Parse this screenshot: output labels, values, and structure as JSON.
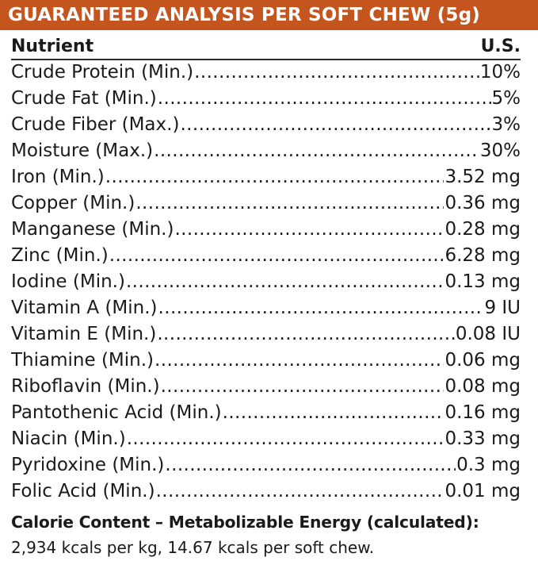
{
  "header": {
    "title": "GUARANTEED ANALYSIS PER SOFT CHEW (5g)"
  },
  "table": {
    "col_nutrient": "Nutrient",
    "col_value": "U.S.",
    "rows": [
      {
        "name": "Crude Protein (Min.)",
        "value": "10%"
      },
      {
        "name": "Crude Fat (Min.)",
        "value": "5%"
      },
      {
        "name": "Crude Fiber (Max.)",
        "value": "3%"
      },
      {
        "name": "Moisture (Max.)",
        "value": "30%"
      },
      {
        "name": "Iron (Min.)",
        "value": "3.52 mg"
      },
      {
        "name": "Copper (Min.)",
        "value": "0.36 mg"
      },
      {
        "name": "Manganese (Min.)",
        "value": "0.28 mg"
      },
      {
        "name": "Zinc (Min.)",
        "value": "6.28 mg"
      },
      {
        "name": "Iodine (Min.)",
        "value": "0.13 mg"
      },
      {
        "name": "Vitamin A (Min.)",
        "value": "9 IU"
      },
      {
        "name": "Vitamin E (Min.)",
        "value": "0.08 IU"
      },
      {
        "name": "Thiamine (Min.)",
        "value": "0.06 mg"
      },
      {
        "name": "Riboflavin (Min.)",
        "value": "0.08 mg"
      },
      {
        "name": "Pantothenic Acid (Min.)",
        "value": "0.16 mg"
      },
      {
        "name": "Niacin (Min.)",
        "value": "0.33 mg"
      },
      {
        "name": "Pyridoxine (Min.)",
        "value": "0.3 mg"
      },
      {
        "name": "Folic Acid (Min.)",
        "value": "0.01 mg"
      }
    ]
  },
  "calorie": {
    "heading": "Calorie Content – Metabolizable Energy (calculated):",
    "text": "2,934 kcals per kg, 14.67 kcals per soft chew."
  },
  "colors": {
    "banner": "#c4551f",
    "text": "#1a1a1a"
  }
}
